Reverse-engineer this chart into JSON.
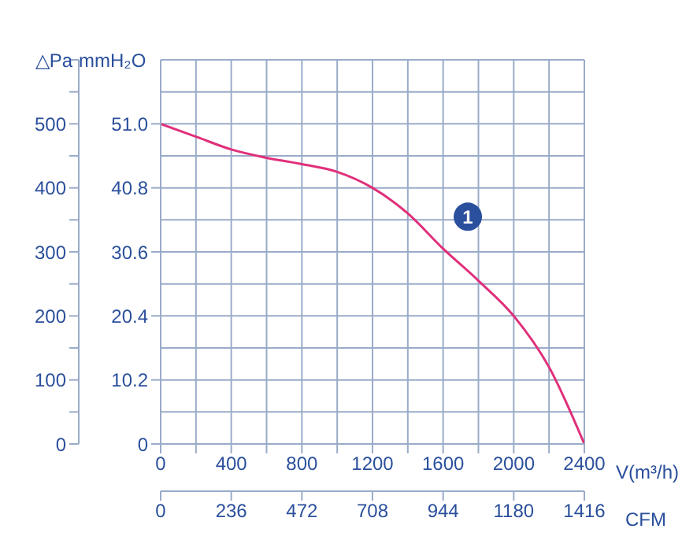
{
  "chart_data": {
    "type": "line",
    "xlabel": "V(m³/h)",
    "ylabel": "△Pa",
    "y2label": "mmH₂O",
    "x2label": "CFM",
    "x": [
      0,
      200,
      400,
      600,
      800,
      1000,
      1200,
      1400,
      1600,
      1800,
      2000,
      2200,
      2400
    ],
    "series": [
      {
        "color": "#e0307a",
        "values": [
          500,
          480,
          460,
          447,
          437,
          425,
          400,
          360,
          305,
          255,
          200,
          120,
          0
        ]
      }
    ],
    "xlim": [
      0,
      2400
    ],
    "xticks": [
      0,
      {
        "value": 200,
        "label": null
      },
      400,
      {
        "value": 600,
        "label": null
      },
      800,
      {
        "value": 1000,
        "label": null
      },
      1200,
      {
        "value": 1400,
        "label": null
      },
      1600,
      {
        "value": 1800,
        "label": null
      },
      2000,
      {
        "value": 2200,
        "label": null
      },
      2400
    ],
    "x2lim": [
      0,
      1416
    ],
    "x2ticks": [
      0,
      236,
      472,
      708,
      944,
      1180,
      1416
    ],
    "ylim": [
      0,
      600
    ],
    "yticks": [
      0,
      {
        "value": 50,
        "label": null
      },
      100,
      {
        "value": 150,
        "label": null
      },
      200,
      {
        "value": 250,
        "label": null
      },
      300,
      {
        "value": 350,
        "label": null
      },
      400,
      {
        "value": 450,
        "label": null
      },
      500,
      {
        "value": 550,
        "label": null
      },
      {
        "value": 600,
        "label": null
      }
    ],
    "y2lim": [
      0,
      61.2
    ],
    "y2ticks": [
      0,
      10.2,
      20.4,
      30.6,
      40.8,
      {
        "value": 51.0,
        "label": "51.0"
      }
    ],
    "annotations": [
      {
        "text": "1",
        "x": 1740,
        "y": 355
      }
    ],
    "grid": true,
    "marker": "none",
    "line_style": "solid"
  }
}
